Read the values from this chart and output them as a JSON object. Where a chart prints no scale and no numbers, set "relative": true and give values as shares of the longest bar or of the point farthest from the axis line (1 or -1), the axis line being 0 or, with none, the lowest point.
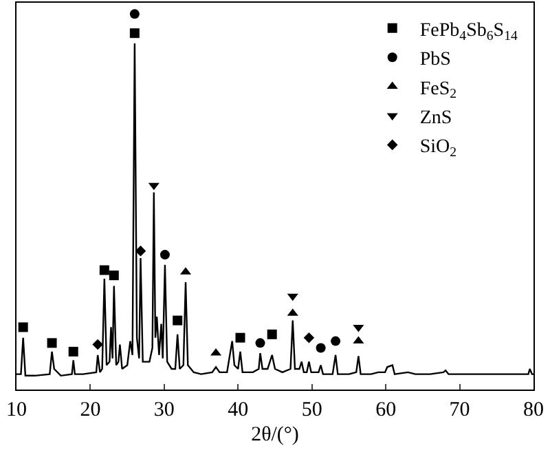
{
  "chart_data": {
    "type": "line",
    "xlabel": "2θ/(°)",
    "relative": true,
    "xlim": [
      10,
      80
    ],
    "xticks": [
      10,
      20,
      30,
      40,
      50,
      60,
      70,
      80
    ],
    "grid": false,
    "legend": "top right",
    "tick_labels": "x",
    "series": [
      {
        "color": "#000000",
        "marker": "none",
        "x": [
          10,
          10.6,
          10.9,
          11.2,
          12.5,
          14.5,
          14.8,
          15.1,
          16,
          17.5,
          17.7,
          17.9,
          19,
          20.8,
          21.0,
          21.3,
          21.6,
          21.9,
          22.2,
          22.6,
          22.8,
          23.0,
          23.2,
          23.5,
          23.8,
          24.0,
          24.3,
          25.0,
          25.4,
          25.7,
          26.0,
          26.3,
          26.6,
          26.8,
          27.1,
          28.0,
          28.4,
          28.6,
          28.8,
          29.0,
          29.3,
          29.6,
          29.8,
          30.1,
          30.4,
          31.0,
          31.5,
          31.8,
          32.1,
          32.6,
          32.9,
          33.2,
          34,
          35,
          36.5,
          37.0,
          37.5,
          38.5,
          39.2,
          39.5,
          40.0,
          40.3,
          40.6,
          42,
          42.8,
          43.0,
          43.3,
          44,
          44.6,
          45.0,
          46,
          47.1,
          47.4,
          47.7,
          48.3,
          48.6,
          48.9,
          49.3,
          49.6,
          49.9,
          50.9,
          51.2,
          51.5,
          52.8,
          53.2,
          53.5,
          55,
          56.0,
          56.3,
          56.6,
          58,
          59,
          59.9,
          60.2,
          60.9,
          61.2,
          63,
          64,
          66,
          67.8,
          68.1,
          68.5,
          70,
          72,
          74,
          76,
          78,
          79.3,
          79.5,
          79.8,
          80
        ],
        "values": [
          0.041,
          0.041,
          0.138,
          0.037,
          0.037,
          0.041,
          0.101,
          0.055,
          0.037,
          0.041,
          0.078,
          0.041,
          0.041,
          0.046,
          0.092,
          0.046,
          0.055,
          0.295,
          0.065,
          0.074,
          0.166,
          0.083,
          0.276,
          0.065,
          0.074,
          0.12,
          0.055,
          0.065,
          0.129,
          0.092,
          0.922,
          0.138,
          0.083,
          0.35,
          0.074,
          0.074,
          0.111,
          0.525,
          0.138,
          0.194,
          0.092,
          0.175,
          0.083,
          0.332,
          0.074,
          0.055,
          0.055,
          0.147,
          0.055,
          0.065,
          0.286,
          0.065,
          0.046,
          0.041,
          0.046,
          0.06,
          0.046,
          0.046,
          0.129,
          0.065,
          0.055,
          0.101,
          0.046,
          0.046,
          0.055,
          0.097,
          0.055,
          0.055,
          0.092,
          0.055,
          0.046,
          0.055,
          0.184,
          0.055,
          0.055,
          0.074,
          0.046,
          0.046,
          0.074,
          0.046,
          0.046,
          0.065,
          0.041,
          0.041,
          0.092,
          0.041,
          0.041,
          0.046,
          0.089,
          0.041,
          0.041,
          0.046,
          0.046,
          0.06,
          0.065,
          0.041,
          0.046,
          0.041,
          0.041,
          0.046,
          0.051,
          0.041,
          0.041,
          0.041,
          0.041,
          0.041,
          0.041,
          0.041,
          0.055,
          0.041,
          0.041
        ]
      },
      {
        "type": "scatter",
        "name": "FePb$_{4}$Sb$_{6}$S$_{14}$",
        "color": "#000000",
        "marker": "square",
        "x": [
          10.9,
          14.8,
          17.7,
          21.9,
          23.2,
          26.0,
          31.8,
          40.3,
          44.6
        ],
        "values": [
          0.166,
          0.124,
          0.101,
          0.318,
          0.304,
          0.949,
          0.184,
          0.138,
          0.147
        ]
      },
      {
        "type": "scatter",
        "name": "PbS",
        "color": "#000000",
        "marker": "circle",
        "x": [
          26.0,
          30.1,
          43.0,
          51.2,
          53.2
        ],
        "values": [
          1,
          0.359,
          0.124,
          0.111,
          0.129
        ]
      },
      {
        "type": "scatter",
        "name": "FeS$_{2}$",
        "color": "#000000",
        "marker": "triangle",
        "x": [
          32.9,
          37.0,
          47.4,
          56.3
        ],
        "values": [
          0.313,
          0.097,
          0.203,
          0.129
        ]
      },
      {
        "type": "scatter",
        "name": "ZnS",
        "color": "#000000",
        "marker": "triangle-down",
        "x": [
          28.6,
          47.4,
          56.3
        ],
        "values": [
          0.544,
          0.249,
          0.166
        ]
      },
      {
        "type": "scatter",
        "name": "SiO$_{2}$",
        "color": "#000000",
        "marker": "diamond",
        "x": [
          21.0,
          26.8,
          49.6
        ],
        "values": [
          0.12,
          0.369,
          0.138
        ]
      }
    ]
  }
}
